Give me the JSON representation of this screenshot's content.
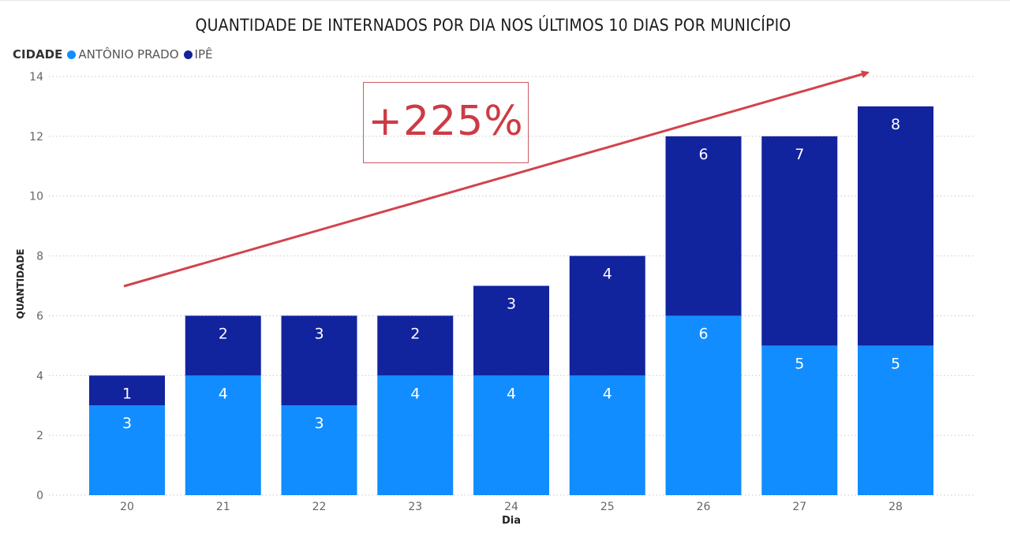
{
  "chart_data": {
    "type": "bar",
    "stacked": true,
    "title": "QUANTIDADE DE INTERNADOS POR DIA NOS ÚLTIMOS 10 DIAS POR MUNICÍPIO",
    "xlabel": "Dia",
    "ylabel": "QUANTIDADE",
    "categories": [
      "20",
      "21",
      "22",
      "23",
      "24",
      "25",
      "26",
      "27",
      "28"
    ],
    "yticks": [
      "0",
      "2",
      "4",
      "6",
      "8",
      "10",
      "12",
      "14"
    ],
    "ylim": [
      0,
      14
    ],
    "grid": true,
    "legend": {
      "title": "CIDADE",
      "position": "top-left"
    },
    "series": [
      {
        "name": "ANTÔNIO PRADO",
        "color": "#118dff",
        "values": [
          3,
          4,
          3,
          4,
          4,
          4,
          6,
          5,
          5
        ]
      },
      {
        "name": "IPÊ",
        "color": "#12239e",
        "values": [
          1,
          2,
          3,
          2,
          3,
          4,
          6,
          7,
          8
        ]
      }
    ],
    "annotation": {
      "text": "+225%",
      "color": "#cc3b45",
      "arrow": "trend arrow rising toward top-right"
    }
  }
}
